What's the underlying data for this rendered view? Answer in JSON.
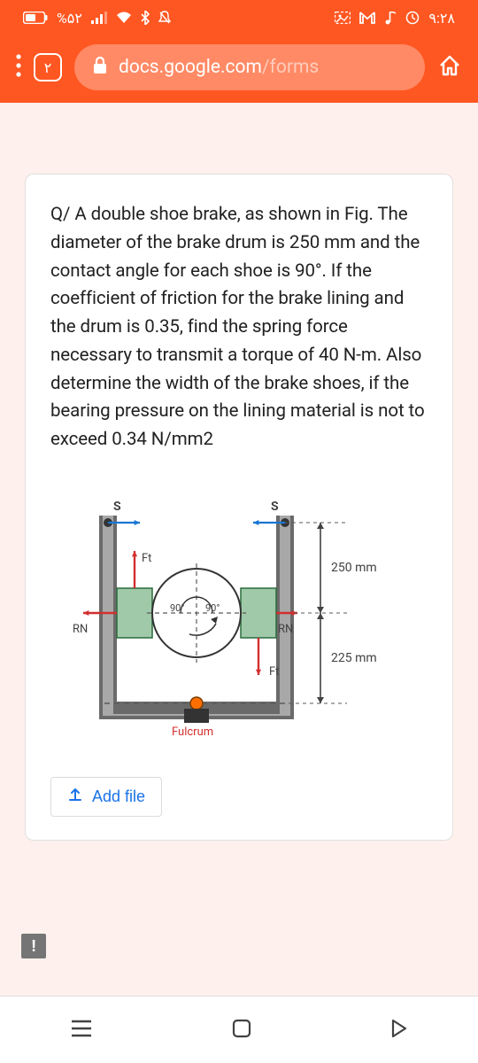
{
  "status": {
    "battery_text": "%۵۲",
    "time": "۹:۲۸"
  },
  "browser": {
    "tab_count": "۲",
    "url_prefix": "docs.google.com",
    "url_suffix": "/forms"
  },
  "card": {
    "question": "Q/ A double shoe brake, as shown in Fig. The diameter of the brake drum is 250 mm and the contact angle for each shoe is 90°. If the coefficient of friction for the brake lining and the drum is 0.35, find the spring force necessary to transmit a torque of 40 N-m. Also determine the width of the brake shoes, if the bearing pressure on the lining material is not to exceed 0.34 N/mm2",
    "add_file_label": "Add file"
  },
  "diagram": {
    "labels": {
      "S_left": "S",
      "S_right": "S",
      "Ft_left": "Ft",
      "Ft_right": "Ft",
      "RN_left": "RN",
      "RN_right": "RN",
      "angle_left": "90°",
      "angle_right": "90°",
      "dim_250": "250 mm",
      "dim_225": "225 mm",
      "fulcrum": "Fulcrum"
    },
    "colors": {
      "frame": "#6a6a6a",
      "frame_light": "#a8a8a8",
      "shoe_fill": "#9fc9a8",
      "shoe_stroke": "#2b6b3d",
      "drum_fill": "#ffffff",
      "drum_stroke": "#333333",
      "arrow_red": "#d32f2f",
      "arrow_blue": "#1976d2",
      "text": "#424242",
      "dash": "#5a5a5a",
      "pivot": "#ff6f00"
    }
  }
}
